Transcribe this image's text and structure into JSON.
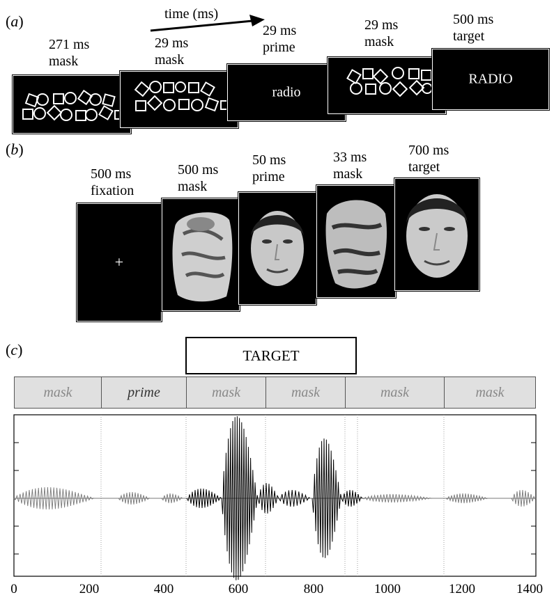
{
  "panel_a": {
    "label": "a",
    "time_label": "time (ms)",
    "frames": [
      {
        "duration": "271 ms",
        "name": "mask",
        "content": ""
      },
      {
        "duration": "29 ms",
        "name": "mask",
        "content": ""
      },
      {
        "duration": "29 ms",
        "name": "prime",
        "content": "radio"
      },
      {
        "duration": "29 ms",
        "name": "mask",
        "content": ""
      },
      {
        "duration": "500 ms",
        "name": "target",
        "content": "RADIO"
      }
    ]
  },
  "panel_b": {
    "label": "b",
    "frames": [
      {
        "duration": "500 ms",
        "name": "fixation",
        "content": "+"
      },
      {
        "duration": "500 ms",
        "name": "mask",
        "content": ""
      },
      {
        "duration": "50 ms",
        "name": "prime",
        "content": ""
      },
      {
        "duration": "33 ms",
        "name": "mask",
        "content": ""
      },
      {
        "duration": "700 ms",
        "name": "target",
        "content": ""
      }
    ]
  },
  "panel_c": {
    "label": "c",
    "target_label": "TARGET",
    "segments": [
      "mask",
      "prime",
      "mask",
      "mask",
      "mask",
      "mask"
    ],
    "x_ticks": [
      "0",
      "200",
      "400",
      "600",
      "800",
      "1000",
      "1200",
      "1400"
    ]
  },
  "colors": {
    "frame_bg": "#000000",
    "segment_bg": "#e0e0e0",
    "waveform": "#000000",
    "waveform_light": "#777777"
  }
}
